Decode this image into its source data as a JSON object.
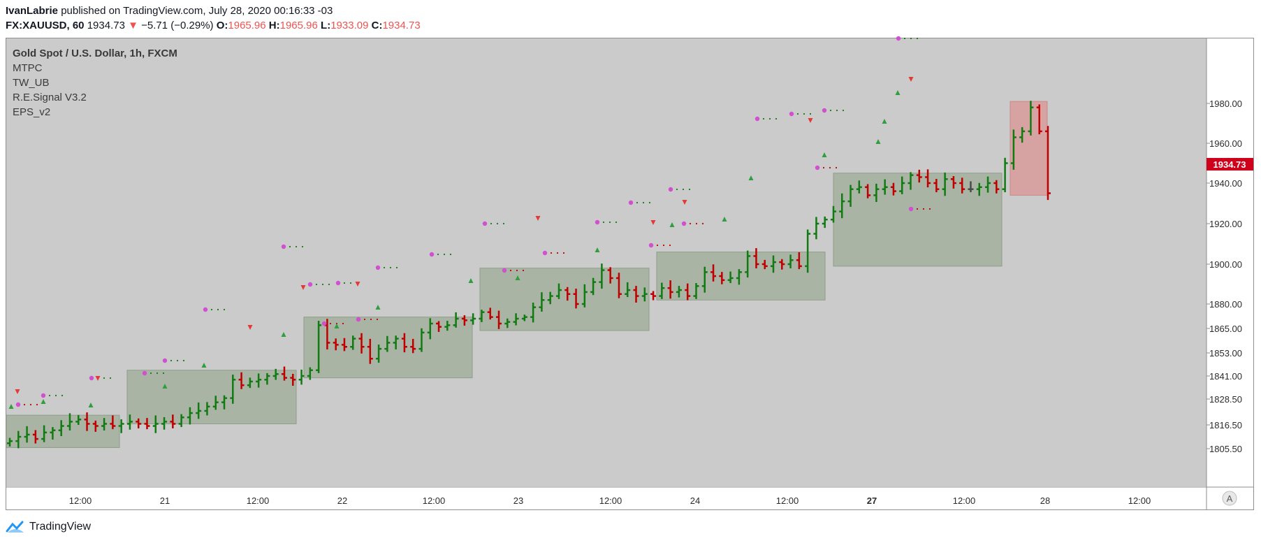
{
  "header": {
    "author": "IvanLabrie",
    "published": " published on TradingView.com, July 28, 2020 00:16:33 -03",
    "symbol": "FX:XAUUSD, 60",
    "last": "1934.73",
    "change_arrow": "▼",
    "change": "−5.71 (−0.29%)",
    "o_label": "O:",
    "o_value": "1965.96",
    "h_label": "H:",
    "h_value": "1965.96",
    "l_label": "L:",
    "l_value": "1933.09",
    "c_label": "C:",
    "c_value": "1934.73"
  },
  "legend": {
    "title": "Gold Spot / U.S. Dollar, 1h, FXCM",
    "indicators": [
      "MTPC",
      "TW_UB",
      "R.E.Signal V3.2",
      "EPS_v2"
    ]
  },
  "footer": {
    "brand": "TradingView"
  },
  "auto_button": "A",
  "colors": {
    "background": "#cbcbcb",
    "up": "#127a12",
    "down": "#c00000",
    "neutral": "#4a4a4a",
    "box_green": "#9aaa94",
    "box_red": "#d99b9b",
    "dot_magenta": "#d050d0",
    "last_price_tag": "#d0021b"
  },
  "chart_data": {
    "type": "ohlc",
    "price_scale": {
      "ticks": [
        1805.5,
        1816.5,
        1828.5,
        1841.0,
        1853.0,
        1865.0,
        1880.0,
        1900.0,
        1920.0,
        1940.0,
        1960.0,
        1980.0
      ],
      "labels": [
        "1805.50",
        "1816.50",
        "1828.50",
        "1841.00",
        "1853.00",
        "1865.00",
        "1880.00",
        "1900.00",
        "1920.00",
        "1940.00",
        "1960.00",
        "1980.00"
      ],
      "last_price": "1934.73"
    },
    "time_labels": [
      "12:00",
      "21",
      "12:00",
      "22",
      "12:00",
      "23",
      "12:00",
      "24",
      "12:00",
      "27",
      "12:00",
      "28",
      "12:00"
    ],
    "time_labels_bold": [
      false,
      false,
      false,
      false,
      false,
      false,
      false,
      false,
      false,
      true,
      false,
      false,
      false
    ],
    "daily_boxes": [
      {
        "high": 1821,
        "low": 1806,
        "color": "green"
      },
      {
        "high": 1844,
        "low": 1817,
        "color": "green"
      },
      {
        "high": 1872,
        "low": 1840,
        "color": "green"
      },
      {
        "high": 1898,
        "low": 1864,
        "color": "green"
      },
      {
        "high": 1906,
        "low": 1882,
        "color": "green"
      },
      {
        "high": 1945,
        "low": 1899,
        "color": "green"
      },
      {
        "high": 1981,
        "low": 1934,
        "color": "red"
      }
    ],
    "bars_close": [
      1809,
      1811,
      1812,
      1810,
      1813,
      1814,
      1816,
      1818,
      1819,
      1817,
      1816,
      1817,
      1816,
      1817,
      1818,
      1817,
      1816,
      1817,
      1818,
      1817,
      1820,
      1822,
      1823,
      1825,
      1827,
      1829,
      1839,
      1836,
      1838,
      1839,
      1841,
      1842,
      1840,
      1839,
      1841,
      1844,
      1867,
      1858,
      1857,
      1856,
      1860,
      1856,
      1850,
      1855,
      1858,
      1860,
      1856,
      1855,
      1863,
      1868,
      1866,
      1867,
      1871,
      1870,
      1871,
      1875,
      1872,
      1868,
      1869,
      1871,
      1872,
      1878,
      1882,
      1884,
      1887,
      1885,
      1880,
      1886,
      1891,
      1897,
      1893,
      1885,
      1887,
      1884,
      1885,
      1884,
      1888,
      1886,
      1887,
      1884,
      1889,
      1896,
      1894,
      1892,
      1893,
      1896,
      1904,
      1900,
      1899,
      1901,
      1900,
      1902,
      1899,
      1915,
      1920,
      1922,
      1926,
      1931,
      1937,
      1938,
      1934,
      1937,
      1938,
      1936,
      1940,
      1944,
      1943,
      1940,
      1937,
      1942,
      1940,
      1937,
      1937,
      1938,
      1940,
      1937,
      1950,
      1963,
      1966,
      1978,
      1966,
      1935
    ]
  }
}
